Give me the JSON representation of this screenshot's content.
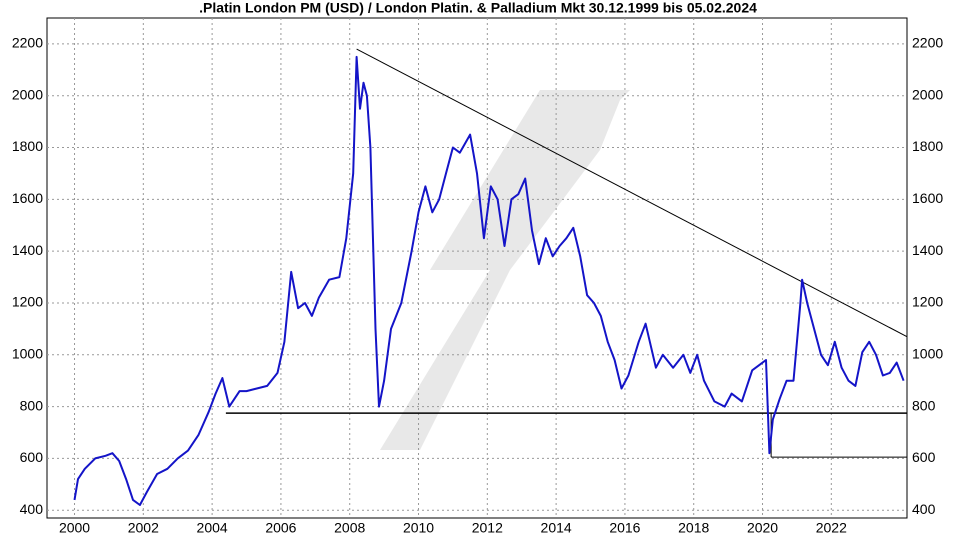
{
  "chart_data": {
    "type": "line",
    "title": ".Platin London PM (USD) / London Platin. & Palladium Mkt 30.12.1999 bis 05.02.2024",
    "x": [
      2000.0,
      2000.1,
      2000.3,
      2000.6,
      2000.9,
      2001.1,
      2001.3,
      2001.5,
      2001.7,
      2001.9,
      2002.1,
      2002.4,
      2002.7,
      2003.0,
      2003.3,
      2003.6,
      2003.9,
      2004.1,
      2004.3,
      2004.5,
      2004.8,
      2005.0,
      2005.3,
      2005.6,
      2005.9,
      2006.1,
      2006.3,
      2006.5,
      2006.7,
      2006.9,
      2007.1,
      2007.4,
      2007.7,
      2007.9,
      2008.1,
      2008.2,
      2008.3,
      2008.4,
      2008.5,
      2008.6,
      2008.75,
      2008.85,
      2009.0,
      2009.2,
      2009.5,
      2009.8,
      2010.0,
      2010.2,
      2010.4,
      2010.6,
      2010.8,
      2011.0,
      2011.2,
      2011.5,
      2011.7,
      2011.9,
      2012.1,
      2012.3,
      2012.5,
      2012.7,
      2012.9,
      2013.1,
      2013.3,
      2013.5,
      2013.7,
      2013.9,
      2014.1,
      2014.3,
      2014.5,
      2014.7,
      2014.9,
      2015.1,
      2015.3,
      2015.5,
      2015.7,
      2015.9,
      2016.1,
      2016.4,
      2016.6,
      2016.9,
      2017.1,
      2017.4,
      2017.7,
      2017.9,
      2018.1,
      2018.3,
      2018.6,
      2018.9,
      2019.1,
      2019.4,
      2019.7,
      2019.9,
      2020.1,
      2020.2,
      2020.3,
      2020.5,
      2020.7,
      2020.9,
      2021.1,
      2021.15,
      2021.3,
      2021.5,
      2021.7,
      2021.9,
      2022.1,
      2022.3,
      2022.5,
      2022.7,
      2022.9,
      2023.1,
      2023.3,
      2023.5,
      2023.7,
      2023.9,
      2024.1
    ],
    "series": [
      {
        "color": "#1414c8",
        "values": [
          440,
          520,
          560,
          600,
          610,
          620,
          590,
          520,
          440,
          420,
          470,
          540,
          560,
          600,
          630,
          690,
          780,
          850,
          910,
          800,
          860,
          860,
          870,
          880,
          930,
          1050,
          1320,
          1180,
          1200,
          1150,
          1220,
          1290,
          1300,
          1450,
          1700,
          2150,
          1950,
          2050,
          2000,
          1800,
          1100,
          800,
          900,
          1100,
          1200,
          1400,
          1550,
          1650,
          1550,
          1600,
          1700,
          1800,
          1780,
          1850,
          1700,
          1450,
          1650,
          1600,
          1420,
          1600,
          1620,
          1680,
          1480,
          1350,
          1450,
          1380,
          1420,
          1450,
          1490,
          1380,
          1230,
          1200,
          1150,
          1050,
          980,
          870,
          920,
          1050,
          1120,
          950,
          1000,
          950,
          1000,
          930,
          1000,
          900,
          820,
          800,
          850,
          820,
          940,
          960,
          980,
          620,
          750,
          830,
          900,
          900,
          1200,
          1290,
          1200,
          1100,
          1000,
          960,
          1050,
          950,
          900,
          880,
          1010,
          1050,
          1000,
          920,
          930,
          970,
          900
        ]
      }
    ],
    "lines": [
      {
        "x": [
          2008.2,
          2024.2
        ],
        "y": [
          2180,
          1070
        ]
      },
      {
        "x": [
          2004.4,
          2024.2
        ],
        "y": [
          775,
          775
        ]
      },
      {
        "x": [
          2020.25,
          2024.2
        ],
        "y": [
          605,
          605
        ]
      },
      {
        "x": [
          2020.25,
          2020.25
        ],
        "y": [
          775,
          605
        ]
      }
    ],
    "xlim": [
      1999.2,
      2024.2
    ],
    "xticks": [
      2000,
      2002,
      2004,
      2006,
      2008,
      2010,
      2012,
      2014,
      2016,
      2018,
      2020,
      2022
    ],
    "ylim": [
      370,
      2300
    ],
    "yticks": [
      400,
      600,
      800,
      1000,
      1200,
      1400,
      1600,
      1800,
      2000,
      2200
    ],
    "grid": true
  }
}
